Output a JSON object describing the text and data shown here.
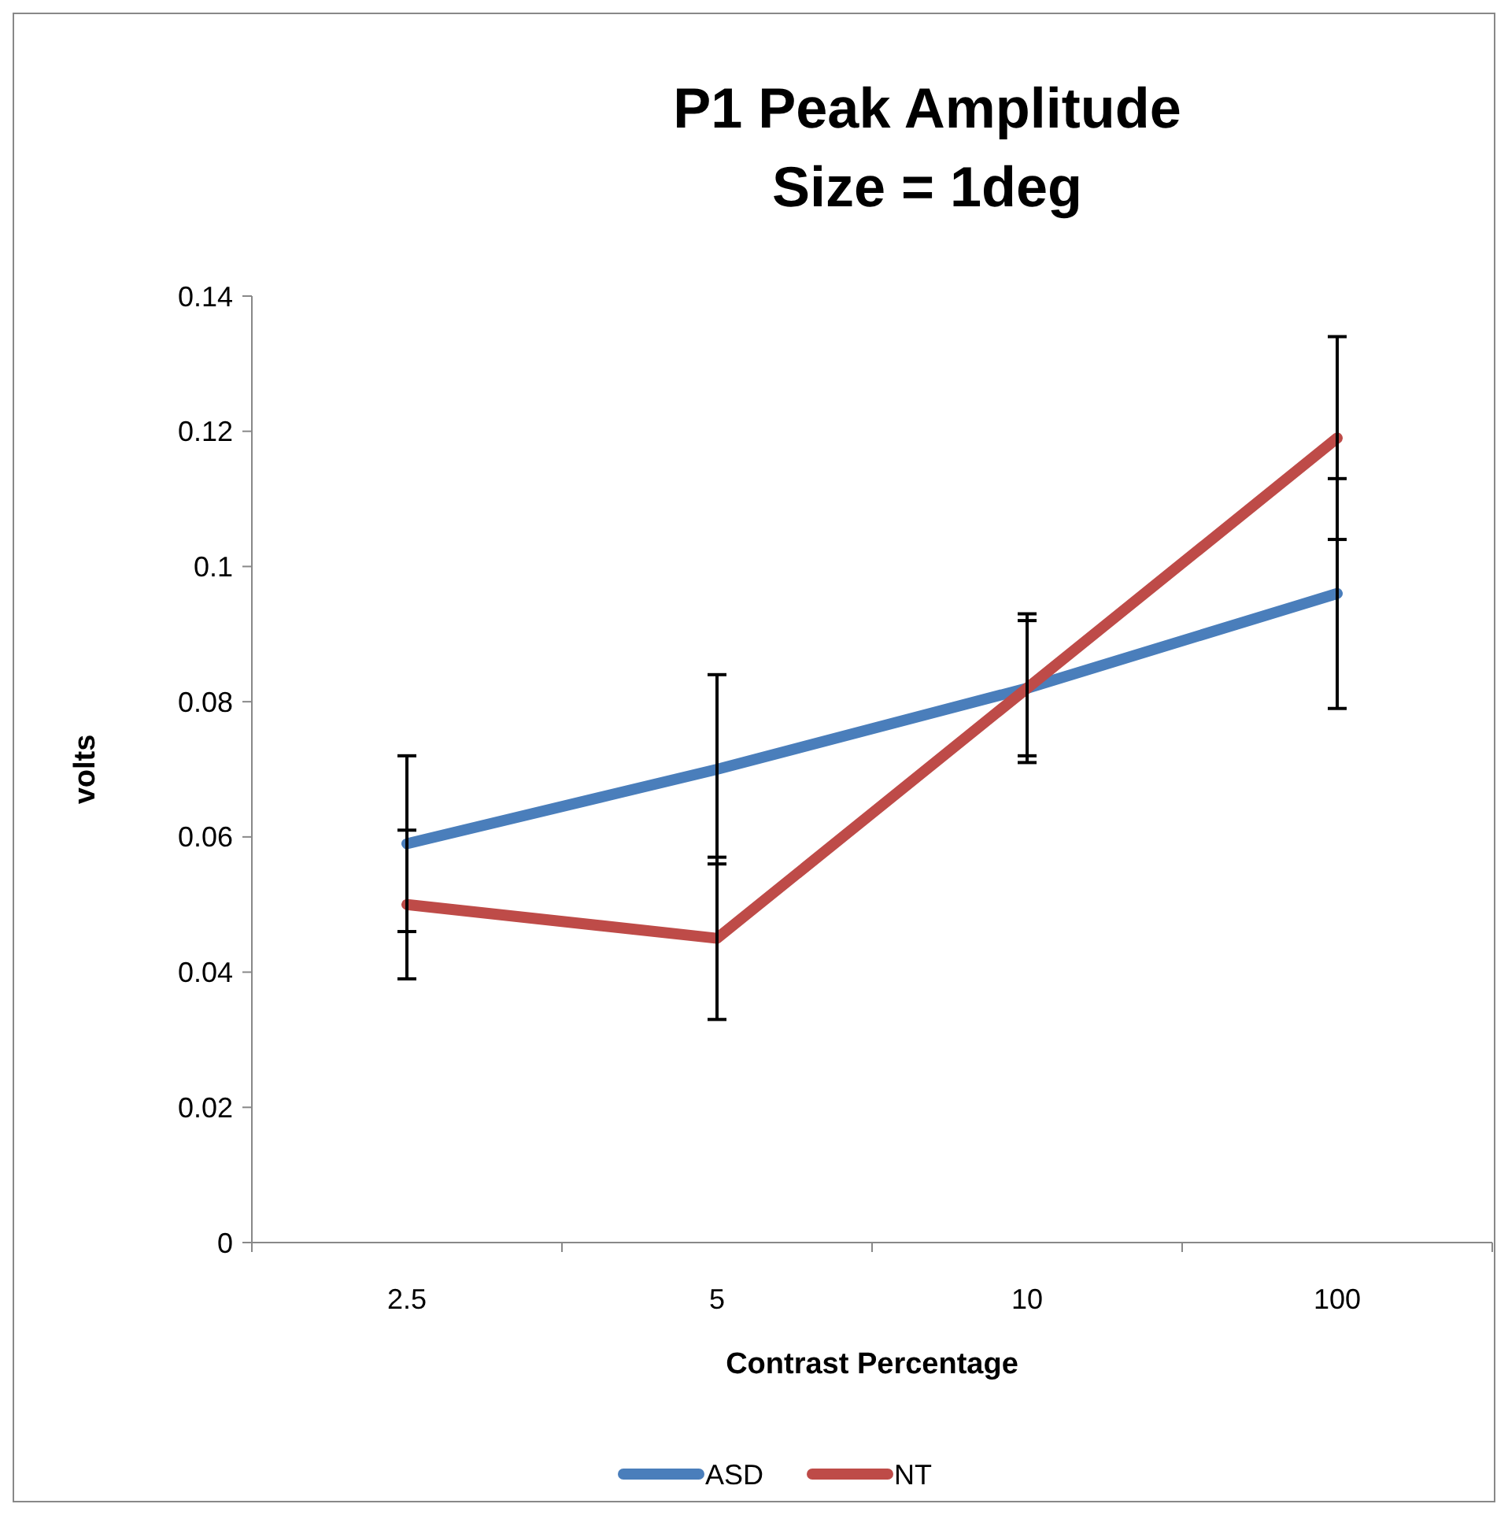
{
  "chart_data": {
    "type": "line",
    "title": "P1 Peak Amplitude\nSize = 1deg",
    "xlabel": "Contrast Percentage",
    "ylabel": "volts",
    "categories": [
      "2.5",
      "5",
      "10",
      "100"
    ],
    "series": [
      {
        "name": "ASD",
        "color": "#4a7ebb",
        "values": [
          0.059,
          0.07,
          0.082,
          0.096
        ],
        "errors": [
          0.013,
          0.014,
          0.01,
          0.017
        ]
      },
      {
        "name": "NT",
        "color": "#be4b48",
        "values": [
          0.05,
          0.045,
          0.082,
          0.119
        ],
        "errors": [
          0.011,
          0.012,
          0.011,
          0.015
        ]
      }
    ],
    "ylim": [
      0,
      0.14
    ],
    "yticks": [
      0,
      0.02,
      0.04,
      0.06,
      0.08,
      0.1,
      0.12,
      0.14
    ],
    "grid": false,
    "legend": "bottom",
    "marker": "none",
    "line_style": "solid"
  }
}
